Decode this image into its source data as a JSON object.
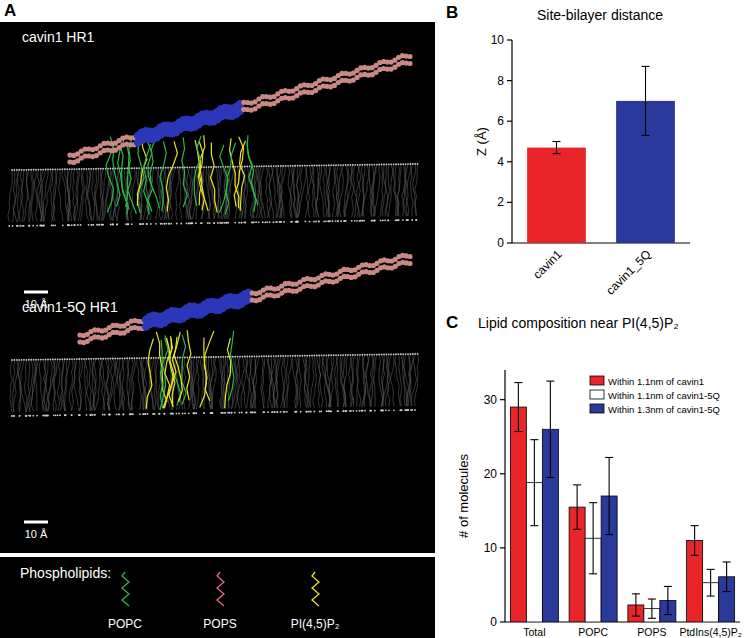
{
  "panel_a": {
    "panel_label": "A",
    "images": [
      {
        "label": "cavin1 HR1",
        "scale_bar": "10 Å"
      },
      {
        "label": "cavin1-5Q HR1",
        "scale_bar": "10 Å"
      }
    ],
    "legend_title": "Phospholipids:",
    "legend": [
      {
        "name": "POPC",
        "color": "#2db84a"
      },
      {
        "name": "POPS",
        "color": "#e6669e"
      },
      {
        "name": "PI(4,5)P₂",
        "color": "#e8e22a"
      }
    ]
  },
  "chart_data": [
    {
      "type": "bar",
      "panel_label": "B",
      "title": "Site-bilayer distance",
      "y_label": "Z (Å)",
      "categories": [
        "cavin1",
        "cavin1_5Q"
      ],
      "values": [
        4.7,
        7.0
      ],
      "errors": [
        0.3,
        1.7
      ],
      "colors": [
        "#e8262a",
        "#2b3a9a"
      ],
      "ylim": [
        0,
        10
      ],
      "yticks": [
        0,
        2,
        4,
        6,
        8,
        10
      ]
    },
    {
      "type": "bar",
      "panel_label": "C",
      "title": "Lipid composition near PI(4,5)P₂",
      "y_label": "# of molecules",
      "categories": [
        "Total",
        "POPC",
        "POPS",
        "PtdIns(4,5)P₂"
      ],
      "series": [
        {
          "name": "Within 1.1nm of cavin1",
          "color": "#e8262a",
          "values": [
            29,
            15.5,
            2.3,
            11
          ],
          "errors": [
            3.3,
            3,
            1.5,
            2
          ]
        },
        {
          "name": "Within 1.1nm of cavin1-5Q",
          "color": "#ffffff",
          "values": [
            18.8,
            11.3,
            1.8,
            5.3
          ],
          "errors": [
            5.8,
            4.8,
            1.3,
            1.8
          ]
        },
        {
          "name": "Within 1.3nm of cavin1-5Q",
          "color": "#2b3a9a",
          "values": [
            26,
            17,
            2.9,
            6.1
          ],
          "errors": [
            6.5,
            5.2,
            1.9,
            2
          ]
        }
      ],
      "ylim": [
        0,
        34
      ],
      "yticks": [
        0,
        10,
        20,
        30
      ],
      "legend": "upper right"
    }
  ]
}
